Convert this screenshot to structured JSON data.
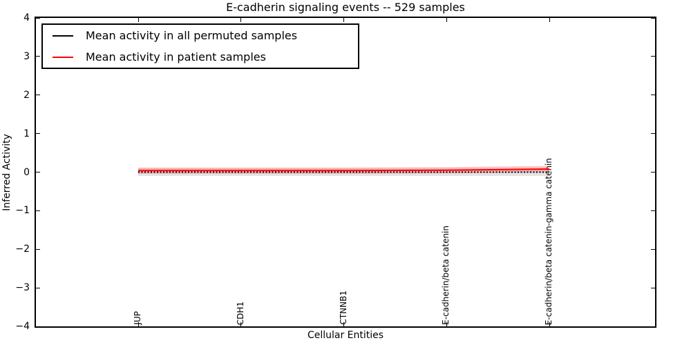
{
  "chart_data": {
    "type": "line",
    "title": "E-cadherin signaling events -- 529 samples",
    "xlabel": "Cellular Entities",
    "ylabel": "Inferred Activity",
    "categories": [
      "JUP",
      "CDH1",
      "CTNNB1",
      "E-cadherin/beta catenin",
      "E-cadherin/beta catenin-gamma catenin"
    ],
    "ylim": [
      -4,
      4
    ],
    "yticks": [
      4,
      3,
      2,
      1,
      0,
      -1,
      -2,
      -3,
      -4
    ],
    "grid": false,
    "legend_position": "upper left",
    "frame_color": "#000000",
    "background_color": "#ffffff",
    "series": [
      {
        "name": "Mean activity in all permuted samples",
        "color": "#000000",
        "style": "dotted",
        "values": [
          0.0,
          0.0,
          0.0,
          0.0,
          0.0
        ],
        "band": 0.1,
        "band_color": "rgba(130,130,130,0.22)"
      },
      {
        "name": "Mean activity in patient samples",
        "color": "#ff0000",
        "style": "solid",
        "values": [
          0.04,
          0.04,
          0.04,
          0.05,
          0.08
        ],
        "band": 0.08,
        "band_color": "rgba(255,60,60,0.30)"
      }
    ]
  }
}
